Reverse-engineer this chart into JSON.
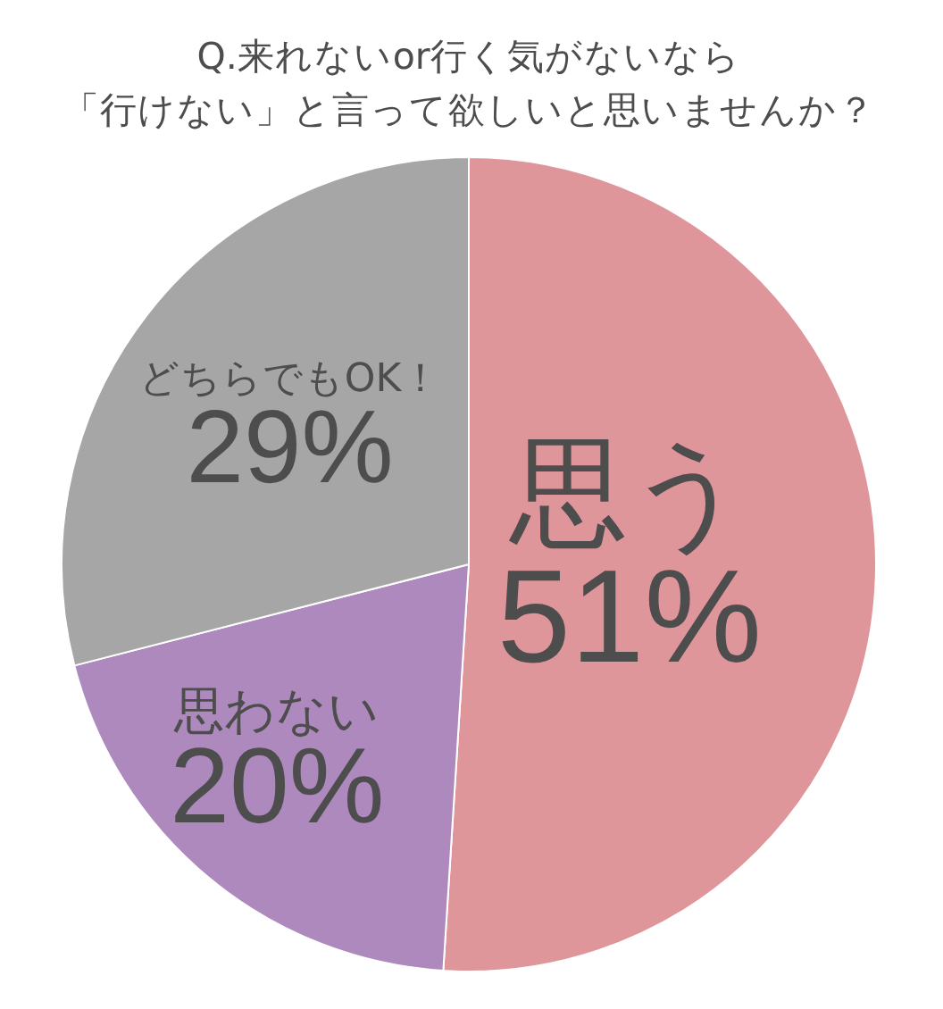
{
  "chart_data": {
    "type": "pie",
    "title": "Q.来れないor行く気がないなら「行けない」と言って欲しいと思いませんか？",
    "categories": [
      "思う",
      "思わない",
      "どちらでもOK！"
    ],
    "values": [
      51,
      20,
      29
    ],
    "colors": [
      "#df969a",
      "#ad89bd",
      "#a6a6a6"
    ],
    "value_labels": [
      "51%",
      "20%",
      "29%"
    ]
  }
}
